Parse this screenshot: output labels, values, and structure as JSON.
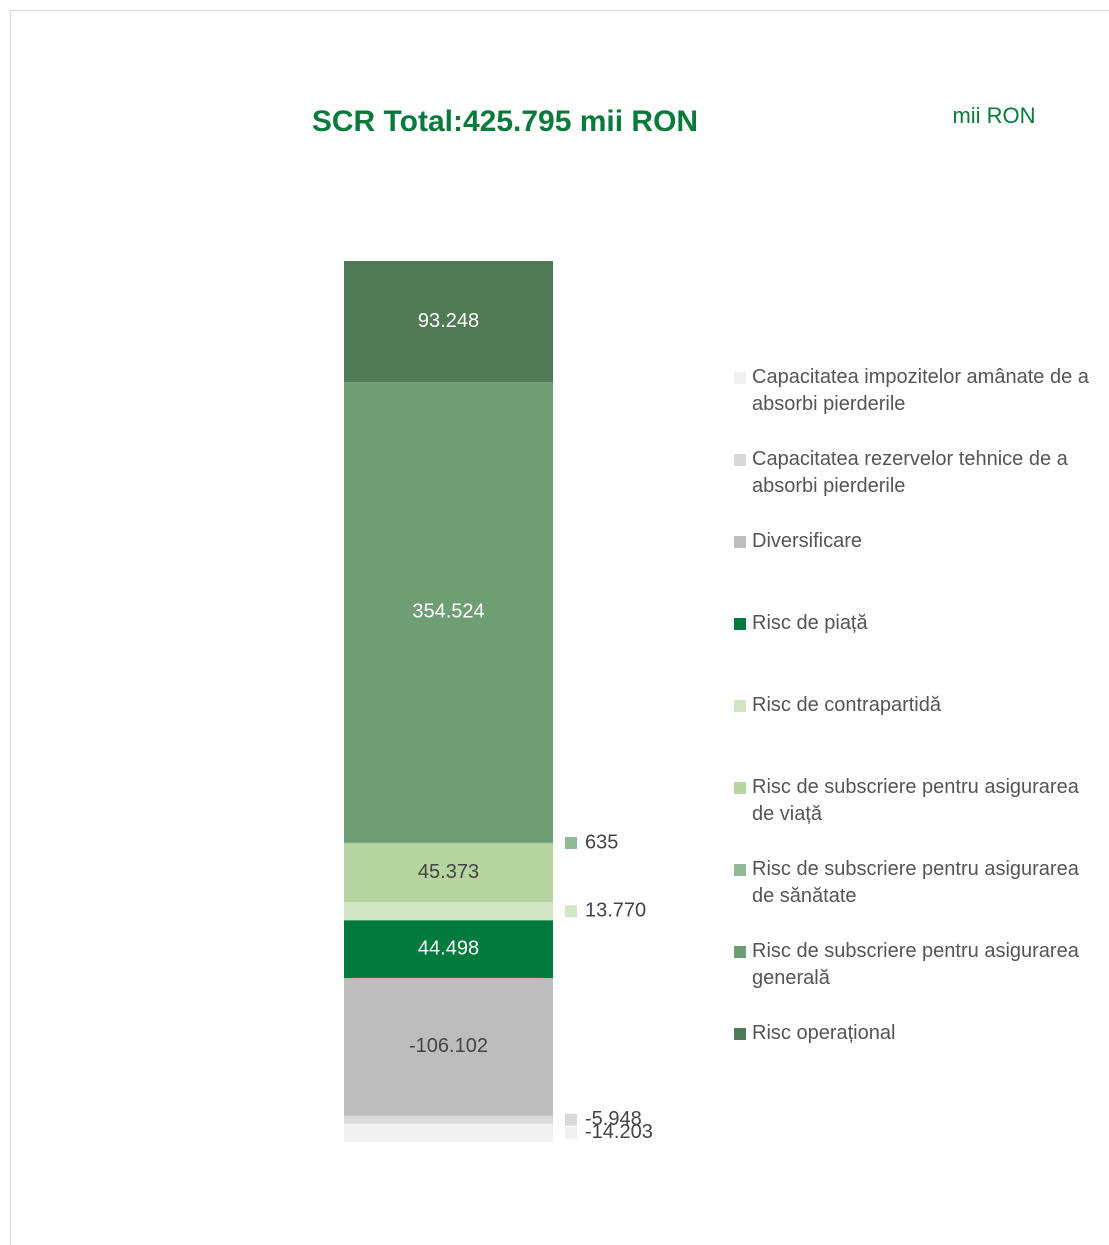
{
  "chart_data": {
    "type": "stacked_bar",
    "title": "SCR Total:425.795 mii RON",
    "unit_label": "mii RON",
    "series": [
      {
        "name": "Capacitatea impozitelor amânate de a absorbi pierderile",
        "color": "#f0f0f0",
        "values": [
          -14203
        ],
        "value_labels": [
          "-14.203"
        ]
      },
      {
        "name": "Capacitatea rezervelor tehnice de a absorbi pierderile",
        "color": "#d9d9d9",
        "values": [
          -5948
        ],
        "value_labels": [
          "-5.948"
        ]
      },
      {
        "name": "Diversificare",
        "color": "#bdbdbd",
        "values": [
          -106102
        ],
        "value_labels": [
          "-106.102"
        ]
      },
      {
        "name": "Risc de piață",
        "color": "#007a3d",
        "values": [
          44498
        ],
        "value_labels": [
          "44.498"
        ]
      },
      {
        "name": "Risc de contrapartidă",
        "color": "#d3e6c4",
        "values": [
          13770
        ],
        "value_labels": [
          "13.770"
        ]
      },
      {
        "name": "Risc de subscriere pentru asigurarea de viață",
        "color": "#b6d5a1",
        "values": [
          45373
        ],
        "value_labels": [
          "45.373"
        ]
      },
      {
        "name": "Risc de subscriere pentru asigurarea de sănătate",
        "color": "#92ba96",
        "values": [
          635
        ],
        "value_labels": [
          "635"
        ]
      },
      {
        "name": "Risc de subscriere pentru asigurarea generală",
        "color": "#6f9e74",
        "values": [
          354524
        ],
        "value_labels": [
          "354.524"
        ]
      },
      {
        "name": "Risc operațional",
        "color": "#4f7a55",
        "values": [
          93248
        ],
        "value_labels": [
          "93.248"
        ]
      }
    ]
  }
}
